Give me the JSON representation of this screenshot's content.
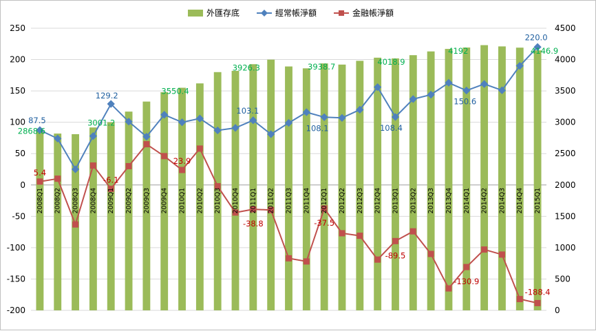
{
  "chart_data": {
    "type": "bar",
    "categories": [
      "2008Q1",
      "2008Q2",
      "2008Q3",
      "2008Q4",
      "2009Q1",
      "2009Q2",
      "2009Q3",
      "2009Q4",
      "2010Q1",
      "2010Q2",
      "2010Q3",
      "2010Q4",
      "2011Q1",
      "2011Q2",
      "2011Q3",
      "2011Q4",
      "2012Q1",
      "2012Q2",
      "2012Q3",
      "2012Q4",
      "2013Q1",
      "2013Q2",
      "2013Q3",
      "2013Q4",
      "2014Q1",
      "2014Q2",
      "2014Q3",
      "2014Q4",
      "2015Q1"
    ],
    "legend": {
      "position": "top"
    },
    "left_axis": {
      "min": -200,
      "max": 250,
      "step": 50
    },
    "right_axis": {
      "min": 0,
      "max": 4500,
      "step": 500
    },
    "series": [
      {
        "name": "外匯存底",
        "kind": "bar",
        "axis": "right",
        "color": "#9bbb59",
        "values": [
          2868.6,
          2820,
          2810,
          2917.0,
          3001.2,
          3170,
          3330,
          3480,
          3550.4,
          3620,
          3800,
          3820,
          3926.3,
          3999,
          3890,
          3860,
          3938.7,
          3920,
          3980,
          4030,
          4018.9,
          4070,
          4130,
          4170,
          4192,
          4230,
          4210,
          4190,
          4146.9
        ]
      },
      {
        "name": "經常帳淨額",
        "kind": "line",
        "axis": "left",
        "color": "#4f81bd",
        "values": [
          87.5,
          74,
          25,
          78,
          129.2,
          101,
          77,
          112,
          100,
          106,
          87,
          91,
          103.1,
          81,
          99,
          116,
          108.1,
          107,
          120,
          156,
          108.4,
          137,
          144,
          163,
          150.6,
          161,
          151,
          190,
          220.0
        ]
      },
      {
        "name": "金融帳淨額",
        "kind": "line",
        "axis": "left",
        "color": "#c0504d",
        "values": [
          5.4,
          10,
          -63,
          31,
          -6.1,
          30,
          65,
          46,
          23.9,
          58,
          -2,
          -44,
          -38.8,
          -40,
          -117,
          -122,
          -37.5,
          -77,
          -81,
          -119,
          -89.5,
          -74,
          -110,
          -165,
          -130.9,
          -103,
          -111,
          -182,
          -188.4
        ]
      }
    ],
    "data_labels": [
      {
        "series": 0,
        "index": 0,
        "text": "2868.6"
      },
      {
        "series": 0,
        "index": 4,
        "text": "3001.2"
      },
      {
        "series": 0,
        "index": 8,
        "text": "3550.4"
      },
      {
        "series": 0,
        "index": 12,
        "text": "3926.3"
      },
      {
        "series": 0,
        "index": 16,
        "text": "3938.7"
      },
      {
        "series": 0,
        "index": 20,
        "text": "4018.9"
      },
      {
        "series": 0,
        "index": 24,
        "text": "4192"
      },
      {
        "series": 0,
        "index": 28,
        "text": "4146.9"
      },
      {
        "series": 1,
        "index": 0,
        "text": "87.5"
      },
      {
        "series": 1,
        "index": 4,
        "text": "129.2"
      },
      {
        "series": 1,
        "index": 12,
        "text": "103.1"
      },
      {
        "series": 1,
        "index": 16,
        "text": "108.1"
      },
      {
        "series": 1,
        "index": 20,
        "text": "108.4"
      },
      {
        "series": 1,
        "index": 24,
        "text": "150.6"
      },
      {
        "series": 1,
        "index": 28,
        "text": "220.0"
      },
      {
        "series": 2,
        "index": 0,
        "text": "5.4"
      },
      {
        "series": 2,
        "index": 4,
        "text": "-6.1"
      },
      {
        "series": 2,
        "index": 8,
        "text": "23.9"
      },
      {
        "series": 2,
        "index": 12,
        "text": "-38.8"
      },
      {
        "series": 2,
        "index": 16,
        "text": "-37.5"
      },
      {
        "series": 2,
        "index": 20,
        "text": "-89.5"
      },
      {
        "series": 2,
        "index": 24,
        "text": "-130.9"
      },
      {
        "series": 2,
        "index": 28,
        "text": "-188.4"
      }
    ],
    "label_colors": [
      "#00b050",
      "#1f5f9f",
      "#c00000"
    ]
  }
}
